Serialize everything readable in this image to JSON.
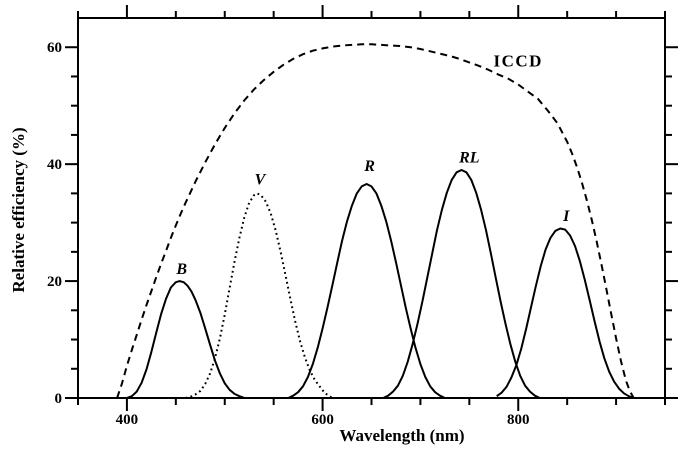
{
  "figure": {
    "background": "#ffffff",
    "ink_color": "#000000"
  },
  "chart_data": {
    "type": "line",
    "title": "",
    "xlabel": "Wavelength (nm)",
    "ylabel": "Relative efficiency (%)",
    "xlim": [
      350,
      950
    ],
    "ylim": [
      0,
      65
    ],
    "grid": false,
    "legend": "inline curve labels",
    "x_major_ticks": [
      400,
      600,
      800
    ],
    "x_minor_ticks": [
      350,
      450,
      500,
      550,
      650,
      700,
      750,
      850,
      900,
      950
    ],
    "y_major_ticks": [
      0,
      20,
      40,
      60
    ],
    "y_minor_ticks": [
      5,
      10,
      15,
      25,
      30,
      35,
      45,
      50,
      55
    ],
    "x_tick_labels": [
      {
        "value": 400,
        "text": "400"
      },
      {
        "value": 600,
        "text": "600"
      },
      {
        "value": 800,
        "text": "800"
      }
    ],
    "y_tick_labels": [
      {
        "value": 0,
        "text": "0"
      },
      {
        "value": 20,
        "text": "20"
      },
      {
        "value": 40,
        "text": "40"
      },
      {
        "value": 60,
        "text": "60"
      }
    ],
    "series": [
      {
        "name": "ICCD",
        "style": "dashed",
        "label": {
          "text": "ICCD",
          "x": 800,
          "y": 57.6,
          "italic": false
        },
        "points": [
          [
            390,
            0
          ],
          [
            395,
            2.5
          ],
          [
            400,
            5.5
          ],
          [
            405,
            8.2
          ],
          [
            410,
            10.8
          ],
          [
            415,
            13.4
          ],
          [
            420,
            15.9
          ],
          [
            425,
            18.3
          ],
          [
            430,
            20.7
          ],
          [
            435,
            23.0
          ],
          [
            440,
            25.2
          ],
          [
            445,
            27.4
          ],
          [
            450,
            29.5
          ],
          [
            455,
            31.5
          ],
          [
            460,
            33.4
          ],
          [
            470,
            37.0
          ],
          [
            480,
            40.3
          ],
          [
            490,
            43.4
          ],
          [
            500,
            46.2
          ],
          [
            510,
            48.7
          ],
          [
            520,
            50.9
          ],
          [
            530,
            52.8
          ],
          [
            540,
            54.4
          ],
          [
            550,
            55.8
          ],
          [
            560,
            57.0
          ],
          [
            570,
            58.0
          ],
          [
            580,
            58.8
          ],
          [
            590,
            59.4
          ],
          [
            600,
            59.8
          ],
          [
            610,
            60.1
          ],
          [
            620,
            60.3
          ],
          [
            630,
            60.4
          ],
          [
            640,
            60.5
          ],
          [
            650,
            60.5
          ],
          [
            660,
            60.4
          ],
          [
            670,
            60.3
          ],
          [
            680,
            60.2
          ],
          [
            690,
            60.0
          ],
          [
            700,
            59.7
          ],
          [
            710,
            59.3
          ],
          [
            720,
            58.9
          ],
          [
            730,
            58.5
          ],
          [
            740,
            58.0
          ],
          [
            750,
            57.4
          ],
          [
            760,
            56.8
          ],
          [
            770,
            56.1
          ],
          [
            780,
            55.3
          ],
          [
            790,
            54.6
          ],
          [
            800,
            53.6
          ],
          [
            810,
            52.4
          ],
          [
            820,
            51.2
          ],
          [
            830,
            49.2
          ],
          [
            840,
            47.0
          ],
          [
            850,
            43.8
          ],
          [
            855,
            41.8
          ],
          [
            860,
            39.5
          ],
          [
            865,
            36.9
          ],
          [
            870,
            33.9
          ],
          [
            875,
            30.6
          ],
          [
            880,
            26.9
          ],
          [
            885,
            22.9
          ],
          [
            890,
            18.7
          ],
          [
            895,
            14.4
          ],
          [
            900,
            10.2
          ],
          [
            905,
            6.3
          ],
          [
            910,
            3.0
          ],
          [
            914,
            1.2
          ],
          [
            918,
            0
          ]
        ]
      },
      {
        "name": "B",
        "style": "solid",
        "label": {
          "text": "B",
          "x": 456,
          "y": 22.1,
          "italic": true
        },
        "points": [
          [
            400,
            0
          ],
          [
            405,
            0.3
          ],
          [
            410,
            1.1
          ],
          [
            415,
            2.6
          ],
          [
            420,
            4.9
          ],
          [
            425,
            7.9
          ],
          [
            430,
            11.2
          ],
          [
            435,
            14.4
          ],
          [
            440,
            17.0
          ],
          [
            445,
            18.9
          ],
          [
            450,
            19.8
          ],
          [
            454,
            20
          ],
          [
            458,
            19.8
          ],
          [
            462,
            19.2
          ],
          [
            466,
            18.2
          ],
          [
            470,
            16.8
          ],
          [
            475,
            14.6
          ],
          [
            480,
            11.9
          ],
          [
            485,
            9.1
          ],
          [
            490,
            6.4
          ],
          [
            495,
            4.2
          ],
          [
            500,
            2.5
          ],
          [
            505,
            1.4
          ],
          [
            510,
            0.7
          ],
          [
            515,
            0.3
          ],
          [
            520,
            0
          ]
        ]
      },
      {
        "name": "V",
        "style": "dotted",
        "label": {
          "text": "V",
          "x": 536,
          "y": 37.4,
          "italic": true
        },
        "points": [
          [
            460,
            0
          ],
          [
            465,
            0.2
          ],
          [
            470,
            0.6
          ],
          [
            475,
            1.2
          ],
          [
            480,
            2.4
          ],
          [
            485,
            4.2
          ],
          [
            490,
            6.8
          ],
          [
            495,
            10.2
          ],
          [
            500,
            14.3
          ],
          [
            505,
            18.8
          ],
          [
            510,
            23.3
          ],
          [
            515,
            27.4
          ],
          [
            520,
            30.9
          ],
          [
            525,
            33.4
          ],
          [
            530,
            34.7
          ],
          [
            533,
            35
          ],
          [
            537,
            34.7
          ],
          [
            542,
            33.6
          ],
          [
            547,
            31.6
          ],
          [
            552,
            28.7
          ],
          [
            557,
            25.1
          ],
          [
            562,
            21.1
          ],
          [
            567,
            17.0
          ],
          [
            572,
            13.1
          ],
          [
            577,
            9.7
          ],
          [
            582,
            6.9
          ],
          [
            587,
            4.7
          ],
          [
            592,
            3.1
          ],
          [
            597,
            2.0
          ],
          [
            602,
            0.9
          ],
          [
            607,
            0.3
          ],
          [
            610,
            0
          ]
        ]
      },
      {
        "name": "R",
        "style": "solid",
        "label": {
          "text": "R",
          "x": 648,
          "y": 39.7,
          "italic": true
        },
        "points": [
          [
            565,
            0
          ],
          [
            570,
            0.4
          ],
          [
            575,
            1.0
          ],
          [
            580,
            2.0
          ],
          [
            585,
            3.6
          ],
          [
            590,
            5.8
          ],
          [
            595,
            8.6
          ],
          [
            600,
            11.9
          ],
          [
            605,
            15.5
          ],
          [
            610,
            19.3
          ],
          [
            615,
            23.2
          ],
          [
            620,
            26.9
          ],
          [
            625,
            30.2
          ],
          [
            630,
            32.9
          ],
          [
            635,
            35.0
          ],
          [
            640,
            36.2
          ],
          [
            645,
            36.6
          ],
          [
            650,
            36.2
          ],
          [
            655,
            35.0
          ],
          [
            660,
            32.9
          ],
          [
            665,
            30.2
          ],
          [
            670,
            26.9
          ],
          [
            675,
            23.2
          ],
          [
            680,
            19.3
          ],
          [
            685,
            15.5
          ],
          [
            690,
            11.9
          ],
          [
            695,
            8.6
          ],
          [
            700,
            5.8
          ],
          [
            705,
            3.6
          ],
          [
            710,
            2.0
          ],
          [
            715,
            1.0
          ],
          [
            720,
            0.4
          ],
          [
            725,
            0
          ]
        ]
      },
      {
        "name": "RL",
        "style": "solid",
        "label": {
          "text": "RL",
          "x": 750,
          "y": 41.1,
          "italic": true
        },
        "points": [
          [
            662,
            0
          ],
          [
            667,
            0.4
          ],
          [
            672,
            1.1
          ],
          [
            677,
            2.1
          ],
          [
            682,
            3.8
          ],
          [
            687,
            6.2
          ],
          [
            692,
            9.2
          ],
          [
            697,
            12.7
          ],
          [
            702,
            16.5
          ],
          [
            707,
            20.6
          ],
          [
            712,
            24.7
          ],
          [
            717,
            28.7
          ],
          [
            722,
            32.2
          ],
          [
            727,
            35.1
          ],
          [
            732,
            37.3
          ],
          [
            737,
            38.6
          ],
          [
            742,
            39
          ],
          [
            747,
            38.6
          ],
          [
            752,
            37.3
          ],
          [
            757,
            35.1
          ],
          [
            762,
            32.2
          ],
          [
            767,
            28.7
          ],
          [
            772,
            24.7
          ],
          [
            777,
            20.6
          ],
          [
            782,
            16.5
          ],
          [
            787,
            12.7
          ],
          [
            792,
            9.2
          ],
          [
            797,
            6.2
          ],
          [
            802,
            3.8
          ],
          [
            807,
            2.1
          ],
          [
            812,
            1.1
          ],
          [
            817,
            0.4
          ],
          [
            822,
            0
          ]
        ]
      },
      {
        "name": "I",
        "style": "solid",
        "label": {
          "text": "I",
          "x": 849,
          "y": 31.1,
          "italic": true
        },
        "points": [
          [
            778,
            0.3
          ],
          [
            783,
            0.9
          ],
          [
            788,
            1.9
          ],
          [
            793,
            3.5
          ],
          [
            798,
            5.6
          ],
          [
            803,
            8.4
          ],
          [
            808,
            11.8
          ],
          [
            813,
            15.5
          ],
          [
            818,
            19.2
          ],
          [
            823,
            22.6
          ],
          [
            828,
            25.4
          ],
          [
            833,
            27.4
          ],
          [
            838,
            28.6
          ],
          [
            843,
            29.0
          ],
          [
            848,
            28.8
          ],
          [
            853,
            27.8
          ],
          [
            858,
            26.0
          ],
          [
            863,
            23.4
          ],
          [
            868,
            20.2
          ],
          [
            873,
            16.7
          ],
          [
            878,
            13.1
          ],
          [
            883,
            9.7
          ],
          [
            888,
            6.8
          ],
          [
            893,
            4.5
          ],
          [
            898,
            2.8
          ],
          [
            903,
            1.6
          ],
          [
            908,
            0.8
          ],
          [
            913,
            0.3
          ],
          [
            918,
            0
          ]
        ]
      }
    ]
  }
}
